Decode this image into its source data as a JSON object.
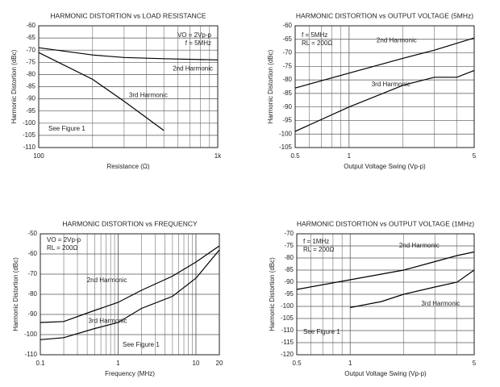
{
  "chart_data": [
    {
      "type": "line",
      "title": "HARMONIC DISTORTION vs LOAD RESISTANCE",
      "x_label": "Resistance (Ω)",
      "y_label": "Harmonic Distortion (dBc)",
      "x_scale": "log",
      "xlim": [
        100,
        1000
      ],
      "xticks": [
        100,
        {
          "value": 1000,
          "label": "1k"
        }
      ],
      "ylim": [
        -60,
        -110
      ],
      "yticks": [
        -60,
        -65,
        -70,
        -75,
        -80,
        -85,
        -90,
        -95,
        -100,
        -105,
        -110
      ],
      "grid": true,
      "minor_grid": true,
      "annotations": [
        "VO = 2Vp-p",
        "f = 5MHz"
      ],
      "note": "See Figure 1",
      "series": [
        {
          "name": "2nd Harmonic",
          "color": "#000000",
          "x": [
            100,
            200,
            300,
            500,
            1000
          ],
          "values": [
            -69,
            -72,
            -73,
            -73.5,
            -74
          ]
        },
        {
          "name": "3rd Harmonic",
          "color": "#000000",
          "x": [
            100,
            200,
            300,
            500
          ],
          "values": [
            -71,
            -82,
            -91,
            -103
          ]
        }
      ]
    },
    {
      "type": "line",
      "title": "HARMONIC DISTORTION vs OUTPUT VOLTAGE (5MHz)",
      "x_label": "Output Voltage Swing (Vp-p)",
      "y_label": "Harmonic Distortion (dBc)",
      "x_scale": "log",
      "xlim": [
        0.5,
        5
      ],
      "xticks": [
        0.5,
        1,
        5
      ],
      "ylim": [
        -60,
        -105
      ],
      "yticks": [
        -60,
        -65,
        -70,
        -75,
        -80,
        -85,
        -90,
        -95,
        -100,
        -105
      ],
      "grid": true,
      "minor_grid": true,
      "annotations": [
        "f = 5MHz",
        "RL = 200Ω"
      ],
      "series": [
        {
          "name": "2nd Harmonic",
          "color": "#000000",
          "x": [
            0.5,
            1,
            2,
            3,
            5
          ],
          "values": [
            -83,
            -77.5,
            -72,
            -69,
            -64.5
          ]
        },
        {
          "name": "3rd Harmonic",
          "color": "#000000",
          "x": [
            0.5,
            1,
            2,
            3,
            4,
            5
          ],
          "values": [
            -99,
            -90,
            -82,
            -79,
            -79,
            -76.5
          ]
        }
      ]
    },
    {
      "type": "line",
      "title": "HARMONIC DISTORTION vs FREQUENCY",
      "x_label": "Frequency (MHz)",
      "y_label": "Harmonic Distortion (dBc)",
      "x_scale": "log",
      "xlim": [
        0.1,
        20
      ],
      "xticks": [
        0.1,
        1,
        10,
        20
      ],
      "ylim": [
        -50,
        -110
      ],
      "yticks": [
        -50,
        -60,
        -70,
        -80,
        -90,
        -100,
        -110
      ],
      "grid": true,
      "minor_grid": true,
      "annotations": [
        "VO = 2Vp-p",
        "RL = 200Ω"
      ],
      "note": "See Figure 1",
      "series": [
        {
          "name": "2nd Harmonic",
          "color": "#000000",
          "x": [
            0.1,
            0.2,
            0.5,
            1,
            2,
            5,
            10,
            20
          ],
          "values": [
            -94,
            -93.5,
            -88,
            -84,
            -78,
            -71,
            -64,
            -56
          ]
        },
        {
          "name": "3rd Harmonic",
          "color": "#000000",
          "x": [
            0.1,
            0.2,
            0.5,
            1,
            2,
            5,
            10,
            20
          ],
          "values": [
            -102.5,
            -101.5,
            -97,
            -94,
            -87,
            -81,
            -72,
            -58
          ]
        }
      ]
    },
    {
      "type": "line",
      "title": "HARMONIC DISTORTION vs OUTPUT VOLTAGE (1MHz)",
      "x_label": "Output Voltage Swing (Vp-p)",
      "y_label": "Harmonic Distortion (dBc)",
      "x_scale": "log",
      "xlim": [
        0.5,
        5
      ],
      "xticks": [
        0.5,
        1,
        5
      ],
      "ylim": [
        -70,
        -120
      ],
      "yticks": [
        -70,
        -75,
        -80,
        -85,
        -90,
        -95,
        -100,
        -105,
        -110,
        -115,
        -120
      ],
      "grid": true,
      "minor_grid": true,
      "annotations": [
        "f = 1MHz",
        "RL = 200Ω"
      ],
      "note": "See Figure 1",
      "series": [
        {
          "name": "2nd Harmonic",
          "color": "#000000",
          "x": [
            0.5,
            1,
            2,
            3,
            4,
            5
          ],
          "values": [
            -93,
            -89,
            -85,
            -81.5,
            -79,
            -77.5
          ]
        },
        {
          "name": "3rd Harmonic",
          "color": "#000000",
          "x": [
            1,
            1.5,
            2,
            3,
            4,
            5
          ],
          "values": [
            -100.5,
            -98,
            -95,
            -92,
            -90,
            -85
          ]
        }
      ]
    }
  ]
}
